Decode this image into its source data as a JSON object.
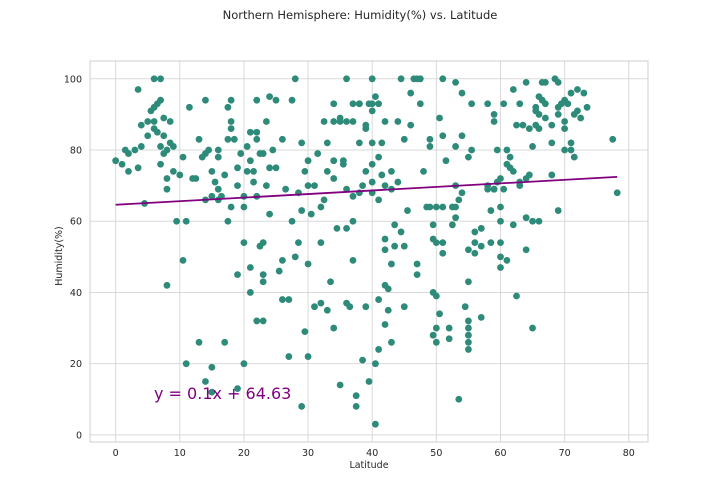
{
  "chart_data": {
    "type": "scatter",
    "title": "Northern Hemisphere: Humidity(%) vs. Latitude",
    "xlabel": "Latitude",
    "ylabel": "Humidity(%)",
    "xlim": [
      -4,
      83
    ],
    "ylim": [
      -2,
      105
    ],
    "xticks": [
      0,
      10,
      20,
      30,
      40,
      50,
      60,
      70,
      80
    ],
    "yticks": [
      0,
      20,
      40,
      60,
      80,
      100
    ],
    "grid": true,
    "point_color": "#2e8b7a",
    "line_color": "#800080",
    "regression": {
      "slope": 0.1,
      "intercept": 64.63,
      "x_range": [
        0,
        78.2
      ]
    },
    "equation": "y = 0.1x + 64.63",
    "points": [
      [
        0,
        77
      ],
      [
        1,
        76
      ],
      [
        1.5,
        80
      ],
      [
        2,
        79
      ],
      [
        2,
        74
      ],
      [
        3,
        80
      ],
      [
        3.5,
        75
      ],
      [
        3.5,
        97
      ],
      [
        4,
        81
      ],
      [
        4,
        87
      ],
      [
        4.5,
        65
      ],
      [
        5,
        84
      ],
      [
        5,
        88
      ],
      [
        5.5,
        91
      ],
      [
        6,
        88
      ],
      [
        6,
        92
      ],
      [
        6,
        86
      ],
      [
        6,
        100
      ],
      [
        6.5,
        93
      ],
      [
        6.5,
        85
      ],
      [
        7,
        100
      ],
      [
        7,
        94
      ],
      [
        7,
        81
      ],
      [
        7,
        76
      ],
      [
        7.5,
        89
      ],
      [
        7.5,
        84
      ],
      [
        7.5,
        79
      ],
      [
        8,
        72
      ],
      [
        8,
        69
      ],
      [
        8,
        80
      ],
      [
        8,
        42
      ],
      [
        8.5,
        88
      ],
      [
        8.5,
        82
      ],
      [
        9,
        81
      ],
      [
        9,
        74
      ],
      [
        9.5,
        60
      ],
      [
        10,
        73
      ],
      [
        10.5,
        78
      ],
      [
        10.5,
        49
      ],
      [
        11,
        60
      ],
      [
        11,
        20
      ],
      [
        11.5,
        92
      ],
      [
        12,
        72
      ],
      [
        12.5,
        72
      ],
      [
        13,
        83
      ],
      [
        13,
        26
      ],
      [
        13.5,
        78
      ],
      [
        14,
        94
      ],
      [
        14,
        79
      ],
      [
        14,
        66
      ],
      [
        14,
        15
      ],
      [
        14.5,
        80
      ],
      [
        15,
        74
      ],
      [
        15,
        67
      ],
      [
        15,
        12
      ],
      [
        15,
        19
      ],
      [
        15.5,
        71
      ],
      [
        16,
        78
      ],
      [
        16,
        80
      ],
      [
        16,
        69
      ],
      [
        16,
        66
      ],
      [
        16.5,
        67
      ],
      [
        17,
        73
      ],
      [
        17,
        26
      ],
      [
        17.5,
        92
      ],
      [
        17.5,
        83
      ],
      [
        17.5,
        60
      ],
      [
        18,
        86
      ],
      [
        18,
        94
      ],
      [
        18,
        88
      ],
      [
        18,
        64
      ],
      [
        18.5,
        83
      ],
      [
        19,
        75
      ],
      [
        19,
        70
      ],
      [
        19,
        45
      ],
      [
        19,
        13
      ],
      [
        19.5,
        79
      ],
      [
        20,
        67
      ],
      [
        20,
        64
      ],
      [
        20,
        54
      ],
      [
        20,
        20
      ],
      [
        20.5,
        81
      ],
      [
        20.5,
        74
      ],
      [
        21,
        85
      ],
      [
        21,
        77
      ],
      [
        21,
        40
      ],
      [
        21,
        47
      ],
      [
        21.5,
        71
      ],
      [
        21.5,
        74
      ],
      [
        22,
        94
      ],
      [
        22,
        85
      ],
      [
        22,
        83
      ],
      [
        22,
        67
      ],
      [
        22,
        32
      ],
      [
        22.5,
        79
      ],
      [
        22.5,
        53
      ],
      [
        23,
        79
      ],
      [
        23,
        54
      ],
      [
        23,
        45
      ],
      [
        23,
        32
      ],
      [
        23,
        43
      ],
      [
        23.5,
        88
      ],
      [
        23.5,
        70
      ],
      [
        24,
        95
      ],
      [
        24,
        75
      ],
      [
        24,
        62
      ],
      [
        24.5,
        80
      ],
      [
        25,
        94
      ],
      [
        25,
        75
      ],
      [
        25.5,
        46
      ],
      [
        26,
        83
      ],
      [
        26,
        49
      ],
      [
        26,
        38
      ],
      [
        26.5,
        69
      ],
      [
        27,
        38
      ],
      [
        27,
        22
      ],
      [
        27.5,
        94
      ],
      [
        27.5,
        60
      ],
      [
        28,
        100
      ],
      [
        28,
        50
      ],
      [
        28.5,
        68
      ],
      [
        28.5,
        54
      ],
      [
        29,
        82
      ],
      [
        29,
        63
      ],
      [
        29,
        8
      ],
      [
        29.5,
        74
      ],
      [
        29.5,
        29
      ],
      [
        30,
        48
      ],
      [
        30,
        70
      ],
      [
        30,
        77
      ],
      [
        30,
        22
      ],
      [
        30.5,
        62
      ],
      [
        31,
        70
      ],
      [
        31,
        36
      ],
      [
        31.5,
        79
      ],
      [
        32,
        37
      ],
      [
        32,
        54
      ],
      [
        32,
        64
      ],
      [
        32.5,
        88
      ],
      [
        32.5,
        66
      ],
      [
        33,
        82
      ],
      [
        33,
        74
      ],
      [
        33,
        35
      ],
      [
        33.5,
        43
      ],
      [
        34,
        88
      ],
      [
        34,
        93
      ],
      [
        34,
        77
      ],
      [
        34,
        72
      ],
      [
        34,
        30
      ],
      [
        34.5,
        58
      ],
      [
        35,
        89
      ],
      [
        35,
        14
      ],
      [
        35,
        88
      ],
      [
        35.5,
        76
      ],
      [
        35.5,
        77
      ],
      [
        36,
        100
      ],
      [
        36,
        88
      ],
      [
        36,
        69
      ],
      [
        36,
        58
      ],
      [
        36,
        37
      ],
      [
        36.5,
        36
      ],
      [
        37,
        93
      ],
      [
        37,
        88
      ],
      [
        37,
        67
      ],
      [
        37,
        60
      ],
      [
        37,
        49
      ],
      [
        37.5,
        8
      ],
      [
        37.5,
        11
      ],
      [
        38,
        93
      ],
      [
        38,
        93
      ],
      [
        38,
        68
      ],
      [
        38,
        82
      ],
      [
        38.5,
        70
      ],
      [
        38.5,
        21
      ],
      [
        39,
        87
      ],
      [
        39,
        74
      ],
      [
        39,
        36
      ],
      [
        39,
        86
      ],
      [
        39.5,
        93
      ],
      [
        39.5,
        15
      ],
      [
        40,
        100
      ],
      [
        40,
        93
      ],
      [
        40,
        82
      ],
      [
        40,
        91
      ],
      [
        40,
        68
      ],
      [
        40,
        76
      ],
      [
        40,
        71
      ],
      [
        40.5,
        95
      ],
      [
        40.5,
        20
      ],
      [
        40.5,
        3
      ],
      [
        41,
        93
      ],
      [
        41,
        78
      ],
      [
        41,
        66
      ],
      [
        41,
        38
      ],
      [
        41,
        24
      ],
      [
        41.5,
        82
      ],
      [
        41.5,
        73
      ],
      [
        42,
        88
      ],
      [
        42,
        55
      ],
      [
        42,
        52
      ],
      [
        42,
        70
      ],
      [
        42,
        42
      ],
      [
        42,
        31
      ],
      [
        42.5,
        41
      ],
      [
        42.5,
        35
      ],
      [
        43,
        74
      ],
      [
        43,
        69
      ],
      [
        43,
        48
      ],
      [
        43,
        26
      ],
      [
        43.5,
        59
      ],
      [
        43.5,
        53
      ],
      [
        44,
        88
      ],
      [
        44,
        71
      ],
      [
        44.5,
        100
      ],
      [
        44.5,
        57
      ],
      [
        45,
        83
      ],
      [
        45,
        53
      ],
      [
        45,
        36
      ],
      [
        45.5,
        63
      ],
      [
        46,
        96
      ],
      [
        46,
        87
      ],
      [
        46.5,
        100
      ],
      [
        47,
        100
      ],
      [
        47,
        48
      ],
      [
        47,
        45
      ],
      [
        47.5,
        100
      ],
      [
        47.5,
        93
      ],
      [
        48,
        74
      ],
      [
        48.5,
        64
      ],
      [
        49,
        83
      ],
      [
        49,
        81
      ],
      [
        49,
        64
      ],
      [
        49.5,
        59
      ],
      [
        49.5,
        55
      ],
      [
        49.5,
        40
      ],
      [
        49.5,
        28
      ],
      [
        50,
        64
      ],
      [
        50,
        54
      ],
      [
        50,
        39
      ],
      [
        50,
        30
      ],
      [
        50,
        26
      ],
      [
        50.5,
        89
      ],
      [
        50.5,
        34
      ],
      [
        51,
        100
      ],
      [
        51,
        84
      ],
      [
        51,
        64
      ],
      [
        51,
        54
      ],
      [
        51,
        51
      ],
      [
        51.5,
        77
      ],
      [
        52,
        30
      ],
      [
        52,
        27
      ],
      [
        52.5,
        64
      ],
      [
        52.5,
        59
      ],
      [
        53,
        70
      ],
      [
        53,
        99
      ],
      [
        53,
        81
      ],
      [
        53,
        64
      ],
      [
        53,
        61
      ],
      [
        53.5,
        66
      ],
      [
        53.5,
        10
      ],
      [
        54,
        96
      ],
      [
        54,
        84
      ],
      [
        54,
        68
      ],
      [
        54.5,
        36
      ],
      [
        55,
        30
      ],
      [
        55,
        28
      ],
      [
        55,
        52
      ],
      [
        55,
        78
      ],
      [
        55,
        43
      ],
      [
        55,
        32
      ],
      [
        55,
        26
      ],
      [
        55,
        24
      ],
      [
        55.5,
        93
      ],
      [
        55.5,
        80
      ],
      [
        56,
        57
      ],
      [
        56,
        54
      ],
      [
        56,
        51
      ],
      [
        57,
        53
      ],
      [
        57,
        58
      ],
      [
        57,
        33
      ],
      [
        57,
        58
      ],
      [
        58,
        93
      ],
      [
        58,
        70
      ],
      [
        58,
        69
      ],
      [
        58.5,
        63
      ],
      [
        58.5,
        54
      ],
      [
        59,
        90
      ],
      [
        59,
        88
      ],
      [
        59,
        69
      ],
      [
        59,
        69
      ],
      [
        59.5,
        71
      ],
      [
        59.5,
        80
      ],
      [
        60,
        72
      ],
      [
        60,
        64
      ],
      [
        60,
        60
      ],
      [
        60,
        50
      ],
      [
        60,
        54
      ],
      [
        60,
        47
      ],
      [
        60.5,
        93
      ],
      [
        60.5,
        69
      ],
      [
        61,
        80
      ],
      [
        61,
        76
      ],
      [
        61,
        49
      ],
      [
        61.5,
        78
      ],
      [
        61.5,
        75
      ],
      [
        62,
        97
      ],
      [
        62,
        74
      ],
      [
        62,
        59
      ],
      [
        62.5,
        87
      ],
      [
        62.5,
        39
      ],
      [
        63,
        93
      ],
      [
        63,
        70
      ],
      [
        63,
        71
      ],
      [
        63.5,
        87
      ],
      [
        64,
        99
      ],
      [
        64,
        72
      ],
      [
        64,
        61
      ],
      [
        64,
        52
      ],
      [
        64.5,
        86
      ],
      [
        64.5,
        73
      ],
      [
        65,
        81
      ],
      [
        65,
        60
      ],
      [
        65,
        30
      ],
      [
        65.5,
        92
      ],
      [
        65.5,
        87
      ],
      [
        65.5,
        91
      ],
      [
        66,
        95
      ],
      [
        66,
        90
      ],
      [
        66,
        86
      ],
      [
        66,
        60
      ],
      [
        66.5,
        99
      ],
      [
        66.5,
        94
      ],
      [
        67,
        99
      ],
      [
        67,
        93
      ],
      [
        67,
        89
      ],
      [
        68,
        87
      ],
      [
        68,
        82
      ],
      [
        68,
        73
      ],
      [
        68.5,
        100
      ],
      [
        69,
        99
      ],
      [
        69,
        92
      ],
      [
        69,
        90
      ],
      [
        69,
        63
      ],
      [
        69.5,
        93
      ],
      [
        70,
        88
      ],
      [
        70,
        86
      ],
      [
        70,
        80
      ],
      [
        70,
        94
      ],
      [
        70.5,
        93
      ],
      [
        71,
        80
      ],
      [
        71,
        96
      ],
      [
        71,
        82
      ],
      [
        71.5,
        90
      ],
      [
        71.5,
        78
      ],
      [
        72,
        97
      ],
      [
        72,
        91
      ],
      [
        72.5,
        89
      ],
      [
        73,
        96
      ],
      [
        73.5,
        92
      ],
      [
        77.5,
        83
      ],
      [
        78.2,
        68
      ]
    ]
  }
}
